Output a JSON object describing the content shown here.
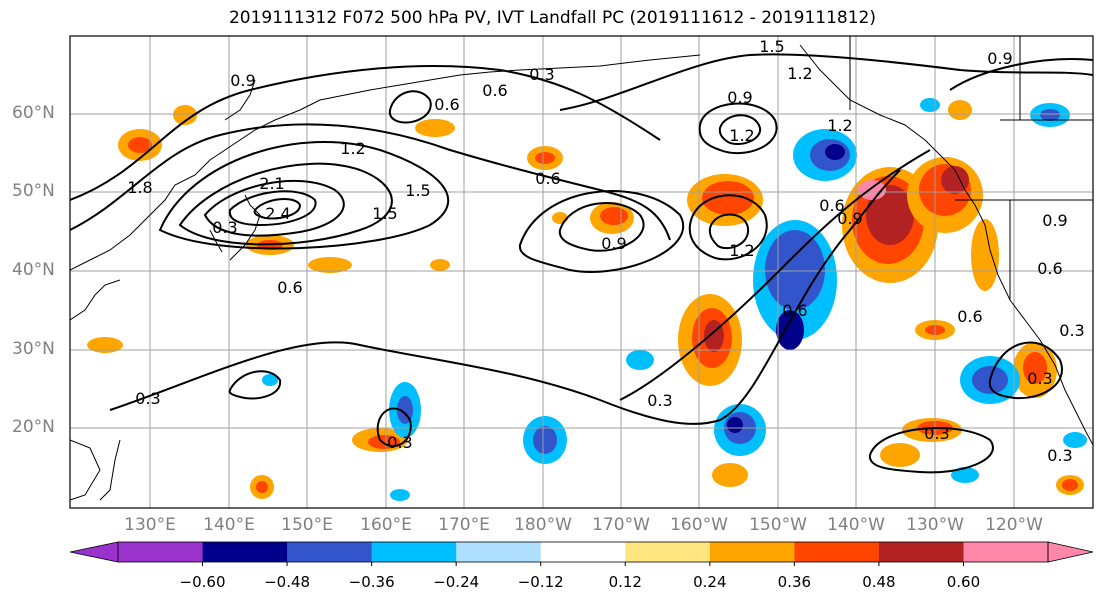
{
  "title": "2019111312 F072 500 hPa PV, IVT Landfall PC (2019111612 - 2019111812)",
  "chart_data": {
    "type": "heatmap",
    "title": "2019111312 F072 500 hPa PV, IVT Landfall PC (2019111612 - 2019111812)",
    "map": {
      "lon_range": [
        120,
        255
      ],
      "lat_range": [
        10,
        70
      ],
      "lat_ticks": [
        "20°N",
        "30°N",
        "40°N",
        "50°N",
        "60°N"
      ],
      "lon_ticks": [
        "130°E",
        "140°E",
        "150°E",
        "160°E",
        "170°E",
        "180°W",
        "170°W",
        "160°W",
        "150°W",
        "140°W",
        "130°W",
        "120°W"
      ],
      "grid": true
    },
    "colorbar": {
      "ticks": [
        "−0.60",
        "−0.48",
        "−0.36",
        "−0.24",
        "−0.12",
        "0.12",
        "0.24",
        "0.36",
        "0.48",
        "0.60"
      ],
      "bounds": [
        -0.72,
        -0.6,
        -0.48,
        -0.36,
        -0.24,
        -0.12,
        0.12,
        0.24,
        0.36,
        0.48,
        0.6,
        0.72
      ],
      "colors": [
        "#9933cc",
        "#00008b",
        "#3355cc",
        "#00bfff",
        "#b0e0ff",
        "#ffffff",
        "#ffe680",
        "#ffa500",
        "#ff4500",
        "#b22222",
        "#ff88aa"
      ],
      "extend": "both"
    },
    "contour_labels": [
      "0.9",
      "0.3",
      "0.6",
      "1.5",
      "1.2",
      "0.9",
      "0.6",
      "0.9",
      "1.2",
      "1.2",
      "1.5",
      "2.1",
      "2.4",
      "1.5",
      "1.8",
      "0.6",
      "0.6",
      "0.9",
      "1.2",
      "1.2",
      "0.6",
      "0.9",
      "0.6",
      "0.3",
      "0.3",
      "0.3",
      "0.3",
      "0.6",
      "0.3",
      "0.6",
      "0.3",
      "0.3",
      "0.3",
      "0.9"
    ]
  }
}
